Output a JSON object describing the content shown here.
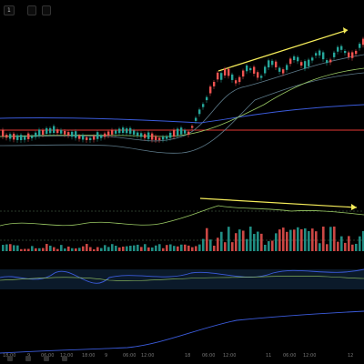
{
  "topbar": {
    "ticker": "1",
    "price1": " ",
    "legend_short": " ",
    "btn_indicator": " ",
    "btn_community": " ",
    "btn_layout": " ",
    "btn_settings": " "
  },
  "legend": {
    "line": " "
  },
  "xaxis": {
    "labels": [
      "18:00",
      "9",
      "06:00",
      "12:00",
      "18:00",
      "9",
      "06:00",
      "12:00",
      "18",
      "06:00",
      "12:00",
      "11",
      "06:00",
      "12:00",
      "12"
    ]
  },
  "colors": {
    "bull": "#26a69a",
    "bear": "#ef5350",
    "trendline": "#f5ec5a",
    "ma_long": "#3b5bdb",
    "ma_mid": "#9ccc65",
    "band": "#5d7a8a",
    "hline": "#e53935"
  },
  "icons": [
    "settings-icon",
    "compare-icon",
    "indicator-icon",
    "layout-icon"
  ]
}
